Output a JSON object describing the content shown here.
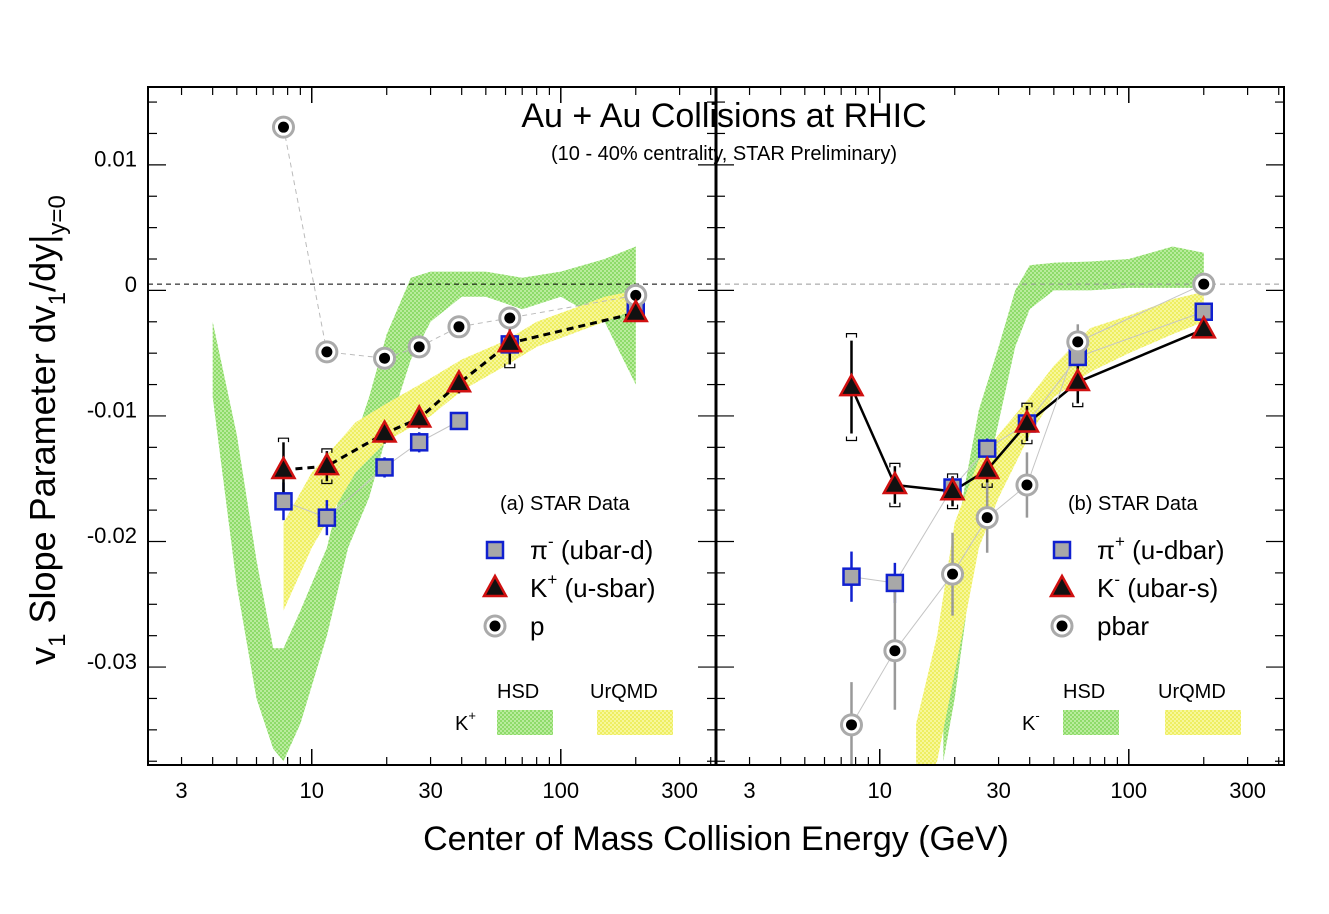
{
  "chart_data": {
    "type": "scatter",
    "title": "Au + Au Collisions at RHIC",
    "subtitle": "(10 - 40% centrality, STAR Preliminary)",
    "xlabel": "Center of Mass Collision Energy (GeV)",
    "ylabel_main": "v",
    "ylabel_sub1": "1",
    "ylabel_mid": " Slope Parameter dv",
    "ylabel_sub2": "1",
    "ylabel_end": "/dy|",
    "ylabel_sub3": "y=0",
    "xscale": "log",
    "xlim": [
      2.2,
      420
    ],
    "ylim": [
      -0.0383,
      0.0157
    ],
    "x_ticks": [
      3,
      10,
      30,
      100,
      300
    ],
    "x_tick_labels": [
      "3",
      "10",
      "30",
      "100",
      "300"
    ],
    "y_ticks": [
      0.01,
      0,
      -0.01,
      -0.02,
      -0.03
    ],
    "y_tick_labels": [
      "0.01",
      "0",
      "-0.01",
      "-0.02",
      "-0.03"
    ],
    "panels": [
      {
        "id": "a",
        "label": "(a) STAR Data",
        "series": [
          {
            "name": "π⁻ (ubar-d)",
            "legend_base": "π",
            "legend_sup": "-",
            "legend_tail": " (ubar-d)",
            "marker": "square",
            "x": [
              7.7,
              11.5,
              19.6,
              27,
              39
            ],
            "y": [
              -0.0173,
              -0.0186,
              -0.0146,
              -0.0126,
              -0.0109
            ],
            "err": [
              0.0015,
              0.0014,
              0.0008,
              0.0008,
              0.0007
            ],
            "connect": "thin-gray"
          },
          {
            "name": "K⁺ (u-sbar)",
            "legend_base": "K",
            "legend_sup": "+",
            "legend_tail": " (u-sbar)",
            "marker": "triangle",
            "x": [
              7.7,
              11.5,
              19.6,
              27,
              39,
              62.4,
              200
            ],
            "y": [
              -0.0148,
              -0.0145,
              -0.0119,
              -0.0107,
              -0.0079,
              -0.0047,
              -0.0023
            ],
            "err": [
              0.0022,
              0.0012,
              0.0008,
              0.0008,
              0.0008,
              0.0017,
              0.0006
            ],
            "connect": "dashed-black"
          },
          {
            "name": "p",
            "legend_base": "p",
            "legend_sup": "",
            "legend_tail": "",
            "marker": "circle",
            "x": [
              7.7,
              11.5,
              19.6,
              27,
              39,
              62.4,
              200
            ],
            "y": [
              0.0125,
              -0.0054,
              -0.0059,
              -0.005,
              -0.0034,
              -0.0027,
              -0.0009
            ],
            "err": [
              0.0003,
              0.0003,
              0.0003,
              0.0003,
              0.0003,
              0.0004,
              0.0002
            ],
            "connect": "dashed-gray"
          }
        ],
        "pi_extra": {
          "x": [
            62.4,
            200
          ],
          "y": [
            -0.0048,
            -0.0022
          ]
        },
        "bands_label": "K⁺",
        "bands_label_base": "K",
        "bands_label_sup": "+",
        "hsd_band": {
          "x": [
            4,
            5,
            6,
            7,
            7.7,
            9,
            11.5,
            14,
            17,
            20,
            25,
            30,
            40,
            50,
            70,
            100,
            150,
            200
          ],
          "upper": [
            -0.003,
            -0.012,
            -0.022,
            -0.029,
            -0.029,
            -0.026,
            -0.021,
            -0.014,
            -0.009,
            -0.004,
            0.0005,
            0.001,
            0.001,
            0.001,
            0.0005,
            0.001,
            0.002,
            0.003
          ],
          "lower": [
            -0.009,
            -0.024,
            -0.033,
            -0.037,
            -0.038,
            -0.035,
            -0.028,
            -0.021,
            -0.017,
            -0.012,
            -0.006,
            -0.003,
            -0.001,
            -0.001,
            -0.002,
            -0.001,
            -0.003,
            -0.008
          ]
        },
        "urqmd_band": {
          "x": [
            7.7,
            10,
            15,
            20,
            30,
            40,
            60,
            80,
            110,
            150,
            200
          ],
          "upper": [
            -0.019,
            -0.015,
            -0.011,
            -0.0095,
            -0.0075,
            -0.006,
            -0.0045,
            -0.003,
            -0.002,
            -0.001,
            -0.0005
          ],
          "lower": [
            -0.026,
            -0.021,
            -0.015,
            -0.0125,
            -0.0105,
            -0.0085,
            -0.0065,
            -0.005,
            -0.004,
            -0.003,
            -0.002
          ]
        }
      },
      {
        "id": "b",
        "label": "(b) STAR Data",
        "series": [
          {
            "name": "π⁺ (u-dbar)",
            "legend_base": "π",
            "legend_sup": "+",
            "legend_tail": " (u-dbar)",
            "marker": "square",
            "x": [
              7.7,
              11.5,
              19.6,
              27,
              39,
              62.4,
              200
            ],
            "y": [
              -0.0233,
              -0.0238,
              -0.0162,
              -0.0131,
              -0.0111,
              -0.0058,
              -0.0022
            ],
            "err": [
              0.002,
              0.0016,
              0.0008,
              0.0008,
              0.0006,
              0.0008,
              0.0005
            ],
            "connect": "thin-gray"
          },
          {
            "name": "K⁻ (ubar-s)",
            "legend_base": "K",
            "legend_sup": "-",
            "legend_tail": " (ubar-s)",
            "marker": "triangle",
            "x": [
              7.7,
              11.5,
              19.6,
              27,
              39,
              62.4,
              200
            ],
            "y": [
              -0.0082,
              -0.016,
              -0.0165,
              -0.0148,
              -0.0111,
              -0.0078,
              -0.0036
            ],
            "err": [
              0.0037,
              0.0015,
              0.0012,
              0.0012,
              0.0014,
              0.0017,
              0.0006
            ],
            "connect": "solid-black"
          },
          {
            "name": "pbar",
            "legend_base": "pbar",
            "legend_sup": "",
            "legend_tail": "",
            "marker": "circle",
            "x": [
              7.7,
              11.5,
              19.6,
              27,
              39,
              62.4,
              200
            ],
            "y": [
              -0.0351,
              -0.0292,
              -0.0231,
              -0.0186,
              -0.016,
              -0.0046,
              0.0
            ],
            "err": [
              0.0034,
              0.0047,
              0.0033,
              0.0028,
              0.0026,
              0.0014,
              0.0004
            ],
            "connect": "thin-gray"
          }
        ],
        "bands_label": "K⁻",
        "bands_label_base": "K",
        "bands_label_sup": "-",
        "hsd_band": {
          "x": [
            18,
            20,
            22,
            25,
            30,
            35,
            40,
            50,
            70,
            100,
            150,
            200
          ],
          "upper": [
            -0.025,
            -0.021,
            -0.016,
            -0.01,
            -0.005,
            -0.0005,
            0.0015,
            0.0017,
            0.0018,
            0.002,
            0.003,
            0.0025
          ],
          "lower": [
            -0.038,
            -0.033,
            -0.027,
            -0.018,
            -0.011,
            -0.005,
            -0.002,
            -0.0005,
            -0.0005,
            -0.0003,
            -0.0003,
            -0.0003
          ]
        },
        "urqmd_band": {
          "x": [
            14,
            17,
            20,
            25,
            30,
            40,
            50,
            70,
            100,
            150,
            200
          ],
          "upper": [
            -0.035,
            -0.028,
            -0.019,
            -0.014,
            -0.012,
            -0.009,
            -0.0065,
            -0.0035,
            -0.0025,
            -0.0012,
            -0.0006
          ],
          "lower": [
            -0.041,
            -0.038,
            -0.031,
            -0.021,
            -0.017,
            -0.012,
            -0.009,
            -0.007,
            -0.0055,
            -0.004,
            -0.003
          ]
        }
      }
    ],
    "legend_bands": {
      "hsd": "HSD",
      "urqmd": "UrQMD"
    }
  },
  "colors": {
    "square_edge": "#1020d0",
    "square_fill": "#a8a8a8",
    "triangle_edge": "#d01010",
    "triangle_fill": "#111111",
    "circle_ring": "#aaaaaa",
    "hsd": "#8fdc6a",
    "urqmd": "#f2f25a"
  }
}
